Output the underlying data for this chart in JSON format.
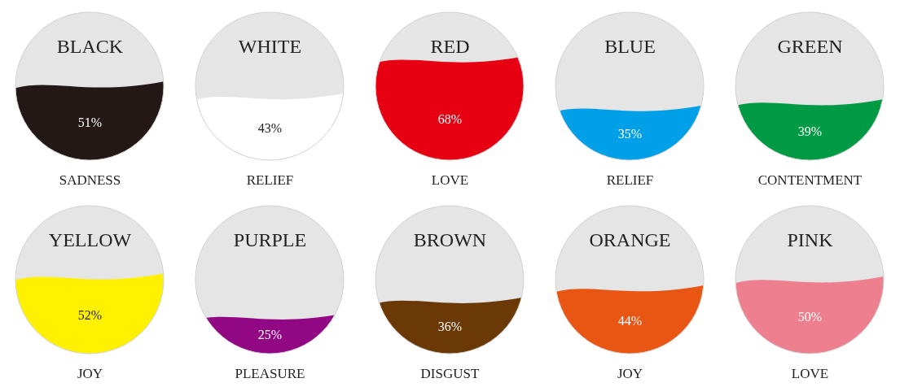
{
  "chart_data": [
    {
      "type": "other",
      "title": "BLACK",
      "xlabel": "SADNESS",
      "values": [
        51
      ],
      "value_labels": [
        "51%"
      ],
      "color": "#231815"
    },
    {
      "type": "other",
      "title": "WHITE",
      "xlabel": "RELIEF",
      "values": [
        43
      ],
      "value_labels": [
        "43%"
      ],
      "color": "#ffffff"
    },
    {
      "type": "other",
      "title": "RED",
      "xlabel": "LOVE",
      "values": [
        68
      ],
      "value_labels": [
        "68%"
      ],
      "color": "#e60012"
    },
    {
      "type": "other",
      "title": "BLUE",
      "xlabel": "RELIEF",
      "values": [
        35
      ],
      "value_labels": [
        "35%"
      ],
      "color": "#00a0e9"
    },
    {
      "type": "other",
      "title": "GREEN",
      "xlabel": "CONTENTMENT",
      "values": [
        39
      ],
      "value_labels": [
        "39%"
      ],
      "color": "#009944"
    },
    {
      "type": "other",
      "title": "YELLOW",
      "xlabel": "JOY",
      "values": [
        52
      ],
      "value_labels": [
        "52%"
      ],
      "color": "#fff100"
    },
    {
      "type": "other",
      "title": "PURPLE",
      "xlabel": "PLEASURE",
      "values": [
        25
      ],
      "value_labels": [
        "25%"
      ],
      "color": "#920783"
    },
    {
      "type": "other",
      "title": "BROWN",
      "xlabel": "DISGUST",
      "values": [
        36
      ],
      "value_labels": [
        "36%"
      ],
      "color": "#6a3906"
    },
    {
      "type": "other",
      "title": "ORANGE",
      "xlabel": "JOY",
      "values": [
        44
      ],
      "value_labels": [
        "44%"
      ],
      "color": "#e95513"
    },
    {
      "type": "other",
      "title": "PINK",
      "xlabel": "LOVE",
      "values": [
        50
      ],
      "value_labels": [
        "50%"
      ],
      "color": "#ee7f8f"
    }
  ]
}
